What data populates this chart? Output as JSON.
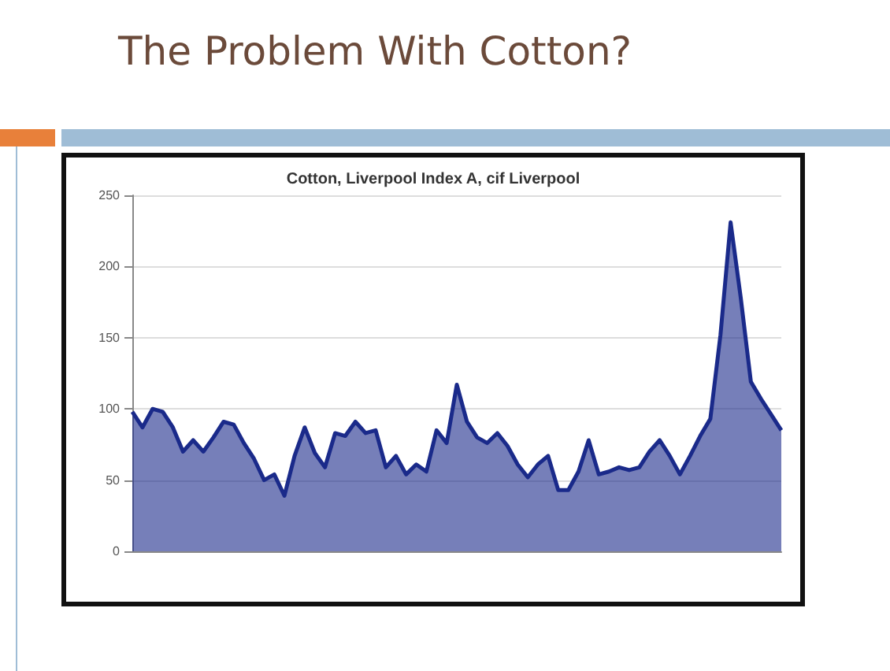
{
  "chart_data": {
    "type": "area",
    "title": "The Problem With Cotton?",
    "subtitle": "Cotton, Liverpool Index A, cif Liverpool",
    "categories": [
      null,
      null,
      null,
      null,
      null,
      null,
      null,
      null,
      null,
      null,
      null,
      null,
      null,
      null,
      null,
      null,
      null,
      null,
      null,
      null,
      null,
      null,
      null,
      null,
      null,
      null,
      null,
      null,
      null,
      null,
      null,
      null,
      null,
      null,
      null,
      null,
      null,
      null,
      null,
      null,
      null,
      null,
      null,
      null,
      null,
      null,
      null,
      null,
      null,
      null,
      null,
      null,
      null,
      null,
      null,
      null,
      null,
      null,
      null,
      null,
      null,
      null,
      null,
      null,
      null
    ],
    "series": [
      {
        "color": "#1a2a8a",
        "values": [
          98,
          87,
          100,
          98,
          87,
          70,
          78,
          70,
          80,
          91,
          89,
          76,
          65,
          50,
          54,
          39,
          67,
          87,
          69,
          59,
          83,
          81,
          91,
          83,
          85,
          59,
          67,
          54,
          61,
          56,
          85,
          76,
          117,
          91,
          80,
          76,
          83,
          74,
          61,
          52,
          61,
          67,
          43,
          43,
          56,
          78,
          54,
          56,
          59,
          57,
          59,
          70,
          78,
          67,
          54,
          67,
          81,
          93,
          152,
          231,
          178,
          119,
          107,
          96,
          85
        ]
      }
    ],
    "ylim": [
      0,
      250
    ],
    "yticks": [
      0,
      50,
      100,
      150,
      200,
      250
    ],
    "grid": "y"
  }
}
